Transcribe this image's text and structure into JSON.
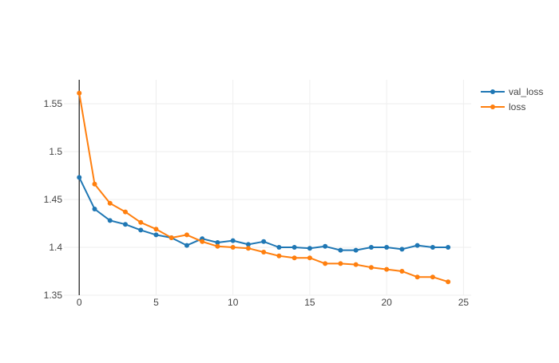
{
  "chart_data": {
    "type": "line",
    "title": "",
    "xlabel": "",
    "ylabel": "",
    "xlim": [
      -1,
      25.5
    ],
    "ylim": [
      1.35,
      1.575
    ],
    "x_ticks": [
      0,
      5,
      10,
      15,
      20,
      25
    ],
    "y_ticks": [
      1.35,
      1.4,
      1.45,
      1.5,
      1.55
    ],
    "x_tick_labels": [
      "0",
      "5",
      "10",
      "15",
      "20",
      "25"
    ],
    "y_tick_labels": [
      "1.35",
      "1.4",
      "1.45",
      "1.5",
      "1.55"
    ],
    "grid": true,
    "legend_position": "top-right",
    "x": [
      0,
      1,
      2,
      3,
      4,
      5,
      6,
      7,
      8,
      9,
      10,
      11,
      12,
      13,
      14,
      15,
      16,
      17,
      18,
      19,
      20,
      21,
      22,
      23,
      24
    ],
    "series": [
      {
        "name": "val_loss",
        "color": "#1f77b4",
        "values": [
          1.473,
          1.44,
          1.428,
          1.424,
          1.418,
          1.413,
          1.41,
          1.402,
          1.409,
          1.405,
          1.407,
          1.403,
          1.406,
          1.4,
          1.4,
          1.399,
          1.401,
          1.397,
          1.397,
          1.4,
          1.4,
          1.398,
          1.402,
          1.4,
          1.4
        ]
      },
      {
        "name": "loss",
        "color": "#ff7f0e",
        "values": [
          1.561,
          1.466,
          1.446,
          1.437,
          1.426,
          1.419,
          1.41,
          1.413,
          1.406,
          1.401,
          1.4,
          1.399,
          1.395,
          1.391,
          1.389,
          1.389,
          1.383,
          1.383,
          1.382,
          1.379,
          1.377,
          1.375,
          1.369,
          1.369,
          1.364
        ]
      }
    ]
  }
}
